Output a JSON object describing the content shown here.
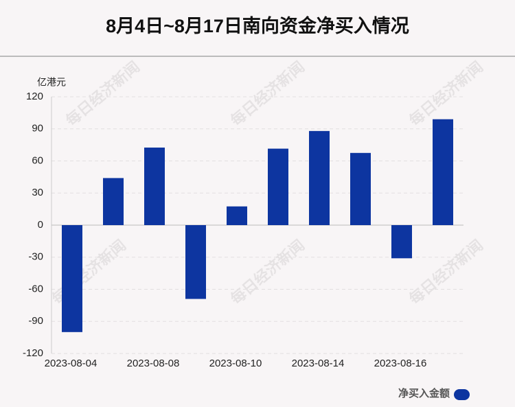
{
  "chart_data": {
    "type": "bar",
    "title": "8月4日~8月17日南向资金净买入情况",
    "y_axis_label": "亿港元",
    "watermark": "每日经济新闻",
    "categories": [
      "2023-08-04",
      null,
      "2023-08-08",
      null,
      "2023-08-10",
      null,
      "2023-08-14",
      null,
      "2023-08-16",
      null
    ],
    "series": [
      {
        "name": "净买入金额",
        "color": "#0d35a0",
        "values": [
          -100,
          44,
          72.5,
          -69,
          17.5,
          71.5,
          88,
          67.5,
          -31,
          99
        ]
      }
    ],
    "ylim": [
      -120,
      120
    ],
    "yticks": [
      -120,
      -90,
      -60,
      -30,
      0,
      30,
      60,
      90,
      120
    ],
    "grid": true
  }
}
